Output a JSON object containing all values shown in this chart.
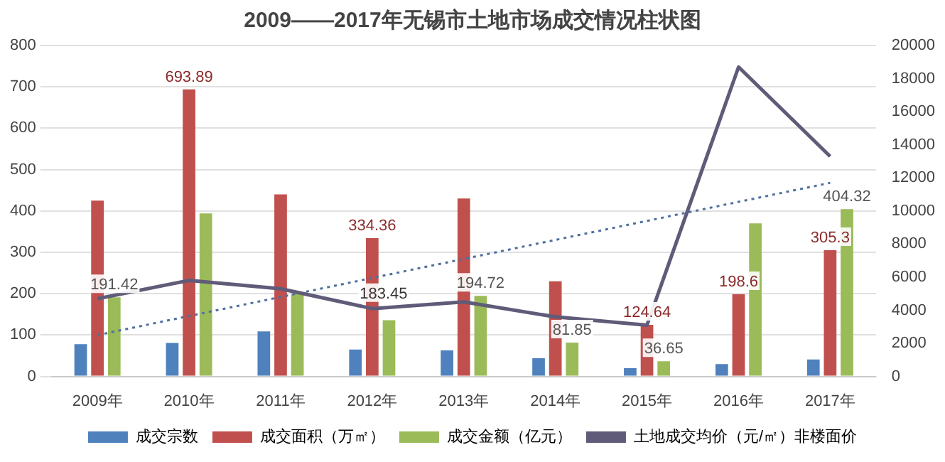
{
  "chart_data": {
    "type": "bar",
    "title": "2009——2017年无锡市土地市场成交情况柱状图",
    "categories": [
      "2009年",
      "2010年",
      "2011年",
      "2012年",
      "2013年",
      "2014年",
      "2015年",
      "2016年",
      "2017年"
    ],
    "series": [
      {
        "name": "成交宗数",
        "color": "#4f81bd",
        "values": [
          78,
          81,
          109,
          65,
          63,
          44,
          20,
          30,
          41
        ]
      },
      {
        "name": "成交面积（万㎡）",
        "color": "#c0504d",
        "values": [
          425,
          693.89,
          440,
          334.36,
          430,
          230,
          124.64,
          198.6,
          305.3
        ],
        "value_labels": [
          null,
          "693.89",
          null,
          "334.36",
          null,
          null,
          "124.64",
          "198.6",
          "305.3"
        ]
      },
      {
        "name": "成交金额（亿元）",
        "color": "#9bbb59",
        "values": [
          191.42,
          394,
          200,
          136,
          194.72,
          81.85,
          36.65,
          370,
          404.32
        ],
        "value_labels": [
          "191.42",
          null,
          null,
          null,
          "194.72",
          "81.85",
          "36.65",
          null,
          "404.32"
        ]
      },
      {
        "name": "土地成交均价（元/㎡）非楼面价",
        "type": "line",
        "axis": "y2",
        "color": "#5f5b78",
        "marker": "none",
        "values": [
          4700,
          5800,
          5300,
          4100,
          4500,
          3600,
          3100,
          18700,
          13300
        ]
      },
      {
        "type": "line",
        "axis": "y2",
        "color": "#4f6fa0",
        "marker": "none",
        "line_style": "dotted",
        "x": [
          "2009年",
          "2017年"
        ],
        "values": [
          2500,
          11700
        ]
      }
    ],
    "annotations": [
      {
        "text": "183.45",
        "x": "2012年",
        "y": 180
      }
    ],
    "ylim": [
      0,
      800
    ],
    "yticks": [
      0,
      100,
      200,
      300,
      400,
      500,
      600,
      700,
      800
    ],
    "y2lim": [
      0,
      20000
    ],
    "y2ticks": [
      0,
      2000,
      4000,
      6000,
      8000,
      10000,
      12000,
      14000,
      16000,
      18000,
      20000
    ],
    "grid": "y",
    "legend": "bottom"
  }
}
